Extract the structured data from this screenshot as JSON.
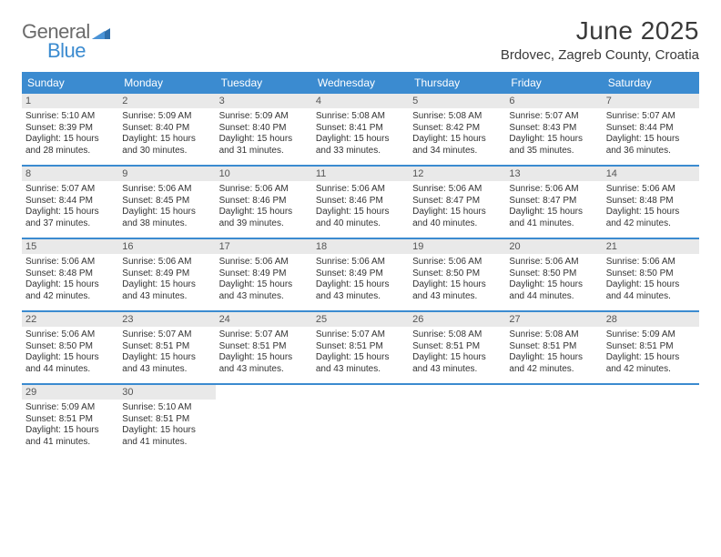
{
  "brand": {
    "general": "General",
    "blue": "Blue"
  },
  "title": "June 2025",
  "location": "Brdovec, Zagreb County, Croatia",
  "colors": {
    "accent": "#3b8bd0",
    "daynum_bg": "#e9e9e9",
    "text": "#333333",
    "title_text": "#3a3a3a",
    "logo_gray": "#6b6b6b"
  },
  "daysOfWeek": [
    "Sunday",
    "Monday",
    "Tuesday",
    "Wednesday",
    "Thursday",
    "Friday",
    "Saturday"
  ],
  "weeks": [
    [
      {
        "num": "1",
        "sunrise": "Sunrise: 5:10 AM",
        "sunset": "Sunset: 8:39 PM",
        "day1": "Daylight: 15 hours",
        "day2": "and 28 minutes."
      },
      {
        "num": "2",
        "sunrise": "Sunrise: 5:09 AM",
        "sunset": "Sunset: 8:40 PM",
        "day1": "Daylight: 15 hours",
        "day2": "and 30 minutes."
      },
      {
        "num": "3",
        "sunrise": "Sunrise: 5:09 AM",
        "sunset": "Sunset: 8:40 PM",
        "day1": "Daylight: 15 hours",
        "day2": "and 31 minutes."
      },
      {
        "num": "4",
        "sunrise": "Sunrise: 5:08 AM",
        "sunset": "Sunset: 8:41 PM",
        "day1": "Daylight: 15 hours",
        "day2": "and 33 minutes."
      },
      {
        "num": "5",
        "sunrise": "Sunrise: 5:08 AM",
        "sunset": "Sunset: 8:42 PM",
        "day1": "Daylight: 15 hours",
        "day2": "and 34 minutes."
      },
      {
        "num": "6",
        "sunrise": "Sunrise: 5:07 AM",
        "sunset": "Sunset: 8:43 PM",
        "day1": "Daylight: 15 hours",
        "day2": "and 35 minutes."
      },
      {
        "num": "7",
        "sunrise": "Sunrise: 5:07 AM",
        "sunset": "Sunset: 8:44 PM",
        "day1": "Daylight: 15 hours",
        "day2": "and 36 minutes."
      }
    ],
    [
      {
        "num": "8",
        "sunrise": "Sunrise: 5:07 AM",
        "sunset": "Sunset: 8:44 PM",
        "day1": "Daylight: 15 hours",
        "day2": "and 37 minutes."
      },
      {
        "num": "9",
        "sunrise": "Sunrise: 5:06 AM",
        "sunset": "Sunset: 8:45 PM",
        "day1": "Daylight: 15 hours",
        "day2": "and 38 minutes."
      },
      {
        "num": "10",
        "sunrise": "Sunrise: 5:06 AM",
        "sunset": "Sunset: 8:46 PM",
        "day1": "Daylight: 15 hours",
        "day2": "and 39 minutes."
      },
      {
        "num": "11",
        "sunrise": "Sunrise: 5:06 AM",
        "sunset": "Sunset: 8:46 PM",
        "day1": "Daylight: 15 hours",
        "day2": "and 40 minutes."
      },
      {
        "num": "12",
        "sunrise": "Sunrise: 5:06 AM",
        "sunset": "Sunset: 8:47 PM",
        "day1": "Daylight: 15 hours",
        "day2": "and 40 minutes."
      },
      {
        "num": "13",
        "sunrise": "Sunrise: 5:06 AM",
        "sunset": "Sunset: 8:47 PM",
        "day1": "Daylight: 15 hours",
        "day2": "and 41 minutes."
      },
      {
        "num": "14",
        "sunrise": "Sunrise: 5:06 AM",
        "sunset": "Sunset: 8:48 PM",
        "day1": "Daylight: 15 hours",
        "day2": "and 42 minutes."
      }
    ],
    [
      {
        "num": "15",
        "sunrise": "Sunrise: 5:06 AM",
        "sunset": "Sunset: 8:48 PM",
        "day1": "Daylight: 15 hours",
        "day2": "and 42 minutes."
      },
      {
        "num": "16",
        "sunrise": "Sunrise: 5:06 AM",
        "sunset": "Sunset: 8:49 PM",
        "day1": "Daylight: 15 hours",
        "day2": "and 43 minutes."
      },
      {
        "num": "17",
        "sunrise": "Sunrise: 5:06 AM",
        "sunset": "Sunset: 8:49 PM",
        "day1": "Daylight: 15 hours",
        "day2": "and 43 minutes."
      },
      {
        "num": "18",
        "sunrise": "Sunrise: 5:06 AM",
        "sunset": "Sunset: 8:49 PM",
        "day1": "Daylight: 15 hours",
        "day2": "and 43 minutes."
      },
      {
        "num": "19",
        "sunrise": "Sunrise: 5:06 AM",
        "sunset": "Sunset: 8:50 PM",
        "day1": "Daylight: 15 hours",
        "day2": "and 43 minutes."
      },
      {
        "num": "20",
        "sunrise": "Sunrise: 5:06 AM",
        "sunset": "Sunset: 8:50 PM",
        "day1": "Daylight: 15 hours",
        "day2": "and 44 minutes."
      },
      {
        "num": "21",
        "sunrise": "Sunrise: 5:06 AM",
        "sunset": "Sunset: 8:50 PM",
        "day1": "Daylight: 15 hours",
        "day2": "and 44 minutes."
      }
    ],
    [
      {
        "num": "22",
        "sunrise": "Sunrise: 5:06 AM",
        "sunset": "Sunset: 8:50 PM",
        "day1": "Daylight: 15 hours",
        "day2": "and 44 minutes."
      },
      {
        "num": "23",
        "sunrise": "Sunrise: 5:07 AM",
        "sunset": "Sunset: 8:51 PM",
        "day1": "Daylight: 15 hours",
        "day2": "and 43 minutes."
      },
      {
        "num": "24",
        "sunrise": "Sunrise: 5:07 AM",
        "sunset": "Sunset: 8:51 PM",
        "day1": "Daylight: 15 hours",
        "day2": "and 43 minutes."
      },
      {
        "num": "25",
        "sunrise": "Sunrise: 5:07 AM",
        "sunset": "Sunset: 8:51 PM",
        "day1": "Daylight: 15 hours",
        "day2": "and 43 minutes."
      },
      {
        "num": "26",
        "sunrise": "Sunrise: 5:08 AM",
        "sunset": "Sunset: 8:51 PM",
        "day1": "Daylight: 15 hours",
        "day2": "and 43 minutes."
      },
      {
        "num": "27",
        "sunrise": "Sunrise: 5:08 AM",
        "sunset": "Sunset: 8:51 PM",
        "day1": "Daylight: 15 hours",
        "day2": "and 42 minutes."
      },
      {
        "num": "28",
        "sunrise": "Sunrise: 5:09 AM",
        "sunset": "Sunset: 8:51 PM",
        "day1": "Daylight: 15 hours",
        "day2": "and 42 minutes."
      }
    ],
    [
      {
        "num": "29",
        "sunrise": "Sunrise: 5:09 AM",
        "sunset": "Sunset: 8:51 PM",
        "day1": "Daylight: 15 hours",
        "day2": "and 41 minutes."
      },
      {
        "num": "30",
        "sunrise": "Sunrise: 5:10 AM",
        "sunset": "Sunset: 8:51 PM",
        "day1": "Daylight: 15 hours",
        "day2": "and 41 minutes."
      },
      null,
      null,
      null,
      null,
      null
    ]
  ]
}
